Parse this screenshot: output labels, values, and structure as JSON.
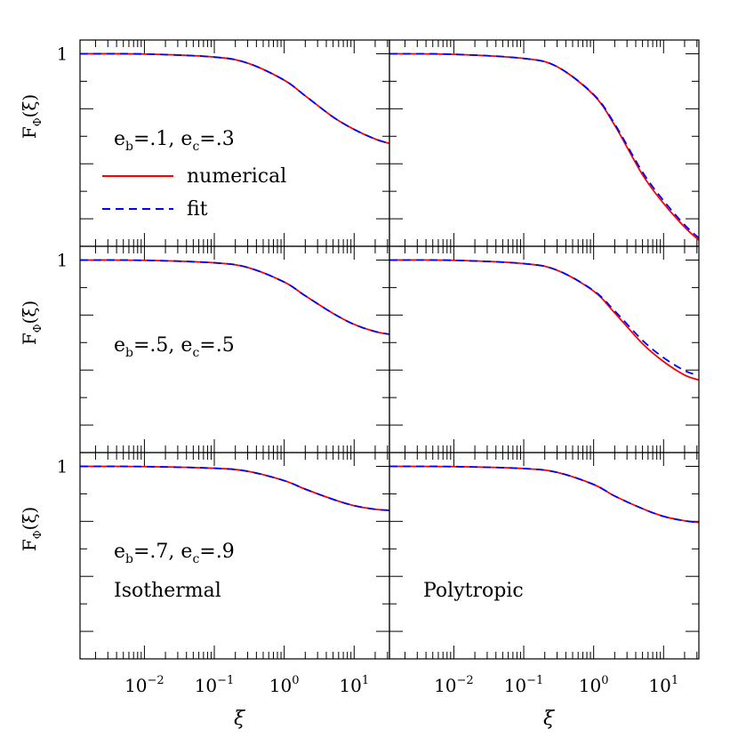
{
  "chart_data": {
    "type": "line",
    "layout": "3x2 panel grid",
    "x_axis": {
      "label": "ξ",
      "scale": "log",
      "xlim": [
        0.0012,
        32
      ],
      "tick_labels": [
        {
          "value": 0.01,
          "base": "10",
          "exp": "−2"
        },
        {
          "value": 0.1,
          "base": "10",
          "exp": "−1"
        },
        {
          "value": 1,
          "base": "10",
          "exp": "0"
        },
        {
          "value": 10,
          "base": "10",
          "exp": "1"
        }
      ]
    },
    "y_axis": {
      "label_main": "F",
      "label_sub": "Φ",
      "label_args": "(ξ)",
      "ylim": [
        0.3,
        1.05
      ],
      "tick_label": "1",
      "major_ticks": [
        1,
        0.8,
        0.6,
        0.4
      ],
      "minor_ticks": [
        0.9,
        0.7,
        0.5
      ]
    },
    "legend": {
      "placement": "top-left panel",
      "entries": [
        {
          "label": "numerical",
          "color": "#ff0000",
          "style": "solid"
        },
        {
          "label": "fit",
          "color": "#0000ff",
          "style": "dashed"
        }
      ]
    },
    "rows": [
      {
        "param_b": ".1",
        "param_c": ".3"
      },
      {
        "param_b": ".5",
        "param_c": ".5"
      },
      {
        "param_b": ".7",
        "param_c": ".9"
      }
    ],
    "columns": [
      {
        "name": "Isothermal"
      },
      {
        "name": "Polytropic"
      }
    ],
    "panels": [
      {
        "row": 0,
        "col": 0,
        "x": [
          0.0012,
          0.01,
          0.1,
          0.3,
          1,
          2,
          5,
          10,
          20,
          32
        ],
        "numerical": [
          1.0,
          0.999,
          0.988,
          0.966,
          0.904,
          0.847,
          0.77,
          0.725,
          0.69,
          0.674
        ],
        "fit": [
          1.0,
          0.999,
          0.988,
          0.966,
          0.904,
          0.847,
          0.77,
          0.725,
          0.69,
          0.674
        ]
      },
      {
        "row": 0,
        "col": 1,
        "x": [
          0.0012,
          0.01,
          0.1,
          0.3,
          1,
          2,
          5,
          10,
          20,
          32
        ],
        "numerical": [
          1.0,
          0.998,
          0.983,
          0.953,
          0.85,
          0.74,
          0.56,
          0.456,
          0.37,
          0.322
        ],
        "fit": [
          1.0,
          0.998,
          0.983,
          0.953,
          0.852,
          0.745,
          0.57,
          0.466,
          0.378,
          0.33
        ]
      },
      {
        "row": 1,
        "col": 0,
        "x": [
          0.0012,
          0.01,
          0.1,
          0.3,
          1,
          2,
          5,
          10,
          20,
          32
        ],
        "numerical": [
          1.0,
          0.999,
          0.99,
          0.973,
          0.92,
          0.87,
          0.806,
          0.766,
          0.74,
          0.73
        ],
        "fit": [
          1.0,
          0.999,
          0.99,
          0.973,
          0.92,
          0.87,
          0.806,
          0.766,
          0.74,
          0.73
        ]
      },
      {
        "row": 1,
        "col": 1,
        "x": [
          0.0012,
          0.01,
          0.1,
          0.3,
          1,
          2,
          5,
          10,
          20,
          32
        ],
        "numerical": [
          1.0,
          0.999,
          0.987,
          0.963,
          0.887,
          0.808,
          0.696,
          0.631,
          0.582,
          0.564
        ],
        "fit": [
          1.0,
          0.999,
          0.987,
          0.963,
          0.889,
          0.815,
          0.708,
          0.645,
          0.598,
          0.58
        ]
      },
      {
        "row": 2,
        "col": 0,
        "x": [
          0.0012,
          0.01,
          0.1,
          0.3,
          1,
          2,
          5,
          10,
          20,
          32
        ],
        "numerical": [
          1.0,
          0.999,
          0.993,
          0.982,
          0.948,
          0.917,
          0.88,
          0.857,
          0.844,
          0.84
        ],
        "fit": [
          1.0,
          0.999,
          0.993,
          0.982,
          0.948,
          0.917,
          0.88,
          0.857,
          0.844,
          0.84
        ]
      },
      {
        "row": 2,
        "col": 1,
        "x": [
          0.0012,
          0.01,
          0.1,
          0.3,
          1,
          2,
          5,
          10,
          20,
          32
        ],
        "numerical": [
          1.0,
          0.999,
          0.992,
          0.978,
          0.934,
          0.892,
          0.846,
          0.818,
          0.802,
          0.796
        ],
        "fit": [
          1.0,
          0.999,
          0.992,
          0.978,
          0.934,
          0.892,
          0.846,
          0.818,
          0.802,
          0.796
        ]
      }
    ]
  }
}
